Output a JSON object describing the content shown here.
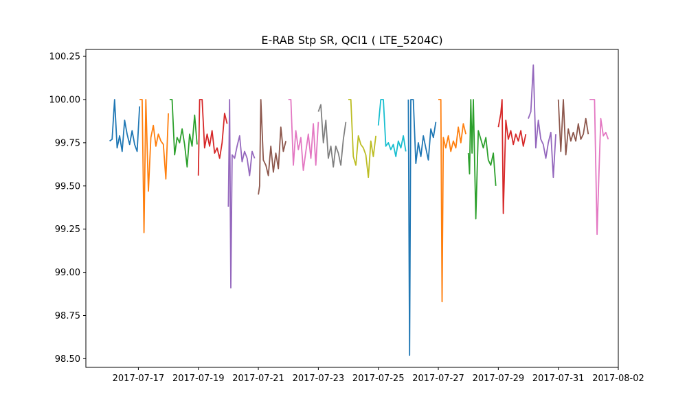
{
  "chart_data": {
    "type": "line",
    "title": "E-RAB Stp SR, QCI1 ( LTE_5204C)",
    "xlabel": "",
    "ylabel": "",
    "x_axis_type": "datetime",
    "xlim": [
      "2017-07-15 06:00",
      "2017-08-02 00:00"
    ],
    "ylim": [
      98.45,
      100.29
    ],
    "x_ticks": [
      "2017-07-17",
      "2017-07-19",
      "2017-07-21",
      "2017-07-23",
      "2017-07-25",
      "2017-07-27",
      "2017-07-29",
      "2017-07-31",
      "2017-08-02"
    ],
    "y_ticks": [
      100.25,
      100.0,
      99.75,
      99.5,
      99.25,
      99.0,
      98.75,
      98.5
    ],
    "y_tick_labels": [
      "100.25",
      "100.00",
      "99.75",
      "99.50",
      "99.25",
      "99.00",
      "98.75",
      "98.50"
    ],
    "grid": false,
    "legend": "none",
    "colors": [
      "#1f77b4",
      "#ff7f0e",
      "#2ca02c",
      "#d62728",
      "#9467bd",
      "#8c564b",
      "#e377c2",
      "#7f7f7f",
      "#bcbd22",
      "#17becf"
    ],
    "series": [
      {
        "color": "#1f77b4",
        "x": [
          "2017-07-16 01:00",
          "2017-07-16 03:00",
          "2017-07-16 05:00",
          "2017-07-16 07:00",
          "2017-07-16 09:00",
          "2017-07-16 11:00",
          "2017-07-16 13:00",
          "2017-07-16 15:00",
          "2017-07-16 17:00",
          "2017-07-16 19:00",
          "2017-07-16 21:00",
          "2017-07-16 23:00",
          "2017-07-17 01:00"
        ],
        "y": [
          99.76,
          99.77,
          100.0,
          99.72,
          99.79,
          99.7,
          99.88,
          99.8,
          99.74,
          99.82,
          99.74,
          99.7,
          99.96
        ]
      },
      {
        "color": "#ff7f0e",
        "x": [
          "2017-07-17 01:00",
          "2017-07-17 03:00",
          "2017-07-17 04:30",
          "2017-07-17 06:00",
          "2017-07-17 08:00",
          "2017-07-17 10:00",
          "2017-07-17 12:00",
          "2017-07-17 14:00",
          "2017-07-17 16:00",
          "2017-07-17 18:00",
          "2017-07-17 20:00",
          "2017-07-17 22:00",
          "2017-07-18 00:00"
        ],
        "y": [
          100.0,
          100.0,
          99.23,
          100.0,
          99.47,
          99.78,
          99.85,
          99.73,
          99.8,
          99.76,
          99.74,
          99.54,
          99.92
        ]
      },
      {
        "color": "#2ca02c",
        "x": [
          "2017-07-18 01:00",
          "2017-07-18 03:00",
          "2017-07-18 05:00",
          "2017-07-18 07:00",
          "2017-07-18 09:00",
          "2017-07-18 11:00",
          "2017-07-18 13:00",
          "2017-07-18 15:00",
          "2017-07-18 17:00",
          "2017-07-18 19:00",
          "2017-07-18 21:00",
          "2017-07-18 23:00"
        ],
        "y": [
          100.0,
          100.0,
          99.68,
          99.78,
          99.75,
          99.83,
          99.74,
          99.61,
          99.8,
          99.73,
          99.91,
          99.74
        ]
      },
      {
        "color": "#d62728",
        "x": [
          "2017-07-19 00:00",
          "2017-07-19 01:00",
          "2017-07-19 03:00",
          "2017-07-19 05:00",
          "2017-07-19 07:00",
          "2017-07-19 09:00",
          "2017-07-19 11:00",
          "2017-07-19 13:00",
          "2017-07-19 15:00",
          "2017-07-19 17:00",
          "2017-07-19 19:00",
          "2017-07-19 21:00",
          "2017-07-19 23:00"
        ],
        "y": [
          99.56,
          100.0,
          100.0,
          99.72,
          99.8,
          99.73,
          99.82,
          99.69,
          99.72,
          99.66,
          99.75,
          99.92,
          99.86
        ]
      },
      {
        "color": "#9467bd",
        "x": [
          "2017-07-20 00:00",
          "2017-07-20 01:00",
          "2017-07-20 02:00",
          "2017-07-20 03:00",
          "2017-07-20 05:00",
          "2017-07-20 07:00",
          "2017-07-20 09:00",
          "2017-07-20 11:00",
          "2017-07-20 13:00",
          "2017-07-20 15:00",
          "2017-07-20 17:00",
          "2017-07-20 19:00",
          "2017-07-20 21:00"
        ],
        "y": [
          99.38,
          100.0,
          98.91,
          99.68,
          99.66,
          99.73,
          99.79,
          99.64,
          99.7,
          99.66,
          99.56,
          99.7,
          99.66
        ]
      },
      {
        "color": "#8c564b",
        "x": [
          "2017-07-21 00:00",
          "2017-07-21 01:00",
          "2017-07-21 02:00",
          "2017-07-21 04:00",
          "2017-07-21 06:00",
          "2017-07-21 08:00",
          "2017-07-21 10:00",
          "2017-07-21 12:00",
          "2017-07-21 14:00",
          "2017-07-21 16:00",
          "2017-07-21 18:00",
          "2017-07-21 20:00",
          "2017-07-21 22:00"
        ],
        "y": [
          99.45,
          99.5,
          100.0,
          99.65,
          99.62,
          99.56,
          99.73,
          99.58,
          99.69,
          99.6,
          99.84,
          99.7,
          99.76
        ]
      },
      {
        "color": "#e377c2",
        "x": [
          "2017-07-22 00:00",
          "2017-07-22 02:00",
          "2017-07-22 04:00",
          "2017-07-22 06:00",
          "2017-07-22 08:00",
          "2017-07-22 10:00",
          "2017-07-22 12:00",
          "2017-07-22 14:00",
          "2017-07-22 16:00",
          "2017-07-22 18:00",
          "2017-07-22 20:00",
          "2017-07-22 22:00",
          "2017-07-23 00:00"
        ],
        "y": [
          100.0,
          100.0,
          99.62,
          99.82,
          99.71,
          99.78,
          99.59,
          99.7,
          99.8,
          99.66,
          99.86,
          99.62,
          99.87
        ]
      },
      {
        "color": "#7f7f7f",
        "x": [
          "2017-07-23 00:00",
          "2017-07-23 02:00",
          "2017-07-23 04:00",
          "2017-07-23 06:00",
          "2017-07-23 08:00",
          "2017-07-23 10:00",
          "2017-07-23 12:00",
          "2017-07-23 14:00",
          "2017-07-23 16:00",
          "2017-07-23 18:00",
          "2017-07-23 20:00",
          "2017-07-23 22:00"
        ],
        "y": [
          99.93,
          99.97,
          99.75,
          99.88,
          99.66,
          99.73,
          99.61,
          99.73,
          99.69,
          99.62,
          99.77,
          99.87
        ]
      },
      {
        "color": "#bcbd22",
        "x": [
          "2017-07-24 00:00",
          "2017-07-24 02:00",
          "2017-07-24 04:00",
          "2017-07-24 06:00",
          "2017-07-24 08:00",
          "2017-07-24 10:00",
          "2017-07-24 12:00",
          "2017-07-24 14:00",
          "2017-07-24 16:00",
          "2017-07-24 18:00",
          "2017-07-24 20:00",
          "2017-07-24 22:00"
        ],
        "y": [
          100.0,
          100.0,
          99.67,
          99.62,
          99.79,
          99.74,
          99.72,
          99.68,
          99.55,
          99.76,
          99.67,
          99.79
        ]
      },
      {
        "color": "#17becf",
        "x": [
          "2017-07-25 00:00",
          "2017-07-25 02:00",
          "2017-07-25 04:00",
          "2017-07-25 06:00",
          "2017-07-25 08:00",
          "2017-07-25 10:00",
          "2017-07-25 12:00",
          "2017-07-25 14:00",
          "2017-07-25 16:00",
          "2017-07-25 18:00",
          "2017-07-25 20:00",
          "2017-07-25 22:00"
        ],
        "y": [
          99.85,
          100.0,
          100.0,
          99.73,
          99.75,
          99.71,
          99.74,
          99.67,
          99.76,
          99.72,
          99.79,
          99.7
        ]
      },
      {
        "color": "#1f77b4",
        "x": [
          "2017-07-26 00:00",
          "2017-07-26 01:00",
          "2017-07-26 02:00",
          "2017-07-26 04:00",
          "2017-07-26 06:00",
          "2017-07-26 08:00",
          "2017-07-26 10:00",
          "2017-07-26 12:00",
          "2017-07-26 14:00",
          "2017-07-26 16:00",
          "2017-07-26 18:00",
          "2017-07-26 20:00",
          "2017-07-26 22:00"
        ],
        "y": [
          100.0,
          98.52,
          100.0,
          100.0,
          99.63,
          99.75,
          99.67,
          99.79,
          99.72,
          99.65,
          99.83,
          99.78,
          99.87
        ]
      },
      {
        "color": "#ff7f0e",
        "x": [
          "2017-07-27 00:00",
          "2017-07-27 02:00",
          "2017-07-27 03:00",
          "2017-07-27 04:00",
          "2017-07-27 06:00",
          "2017-07-27 08:00",
          "2017-07-27 10:00",
          "2017-07-27 12:00",
          "2017-07-27 14:00",
          "2017-07-27 16:00",
          "2017-07-27 18:00",
          "2017-07-27 20:00",
          "2017-07-27 22:00"
        ],
        "y": [
          100.0,
          100.0,
          98.83,
          99.78,
          99.72,
          99.79,
          99.7,
          99.76,
          99.72,
          99.84,
          99.75,
          99.86,
          99.8
        ]
      },
      {
        "color": "#2ca02c",
        "x": [
          "2017-07-28 00:00",
          "2017-07-28 01:00",
          "2017-07-28 02:00",
          "2017-07-28 03:00",
          "2017-07-28 04:00",
          "2017-07-28 06:00",
          "2017-07-28 08:00",
          "2017-07-28 10:00",
          "2017-07-28 12:00",
          "2017-07-28 14:00",
          "2017-07-28 16:00",
          "2017-07-28 18:00",
          "2017-07-28 20:00",
          "2017-07-28 22:00"
        ],
        "y": [
          99.69,
          99.57,
          100.0,
          99.69,
          100.0,
          99.31,
          99.82,
          99.77,
          99.72,
          99.78,
          99.65,
          99.62,
          99.69,
          99.5
        ]
      },
      {
        "color": "#d62728",
        "x": [
          "2017-07-29 00:00",
          "2017-07-29 02:00",
          "2017-07-29 03:00",
          "2017-07-29 04:00",
          "2017-07-29 06:00",
          "2017-07-29 08:00",
          "2017-07-29 10:00",
          "2017-07-29 12:00",
          "2017-07-29 14:00",
          "2017-07-29 16:00",
          "2017-07-29 18:00",
          "2017-07-29 20:00",
          "2017-07-29 22:00"
        ],
        "y": [
          99.84,
          99.92,
          100.0,
          99.34,
          99.88,
          99.77,
          99.82,
          99.74,
          99.8,
          99.76,
          99.82,
          99.73,
          99.8
        ]
      },
      {
        "color": "#9467bd",
        "x": [
          "2017-07-30 00:00",
          "2017-07-30 02:00",
          "2017-07-30 04:00",
          "2017-07-30 06:00",
          "2017-07-30 08:00",
          "2017-07-30 10:00",
          "2017-07-30 12:00",
          "2017-07-30 14:00",
          "2017-07-30 16:00",
          "2017-07-30 18:00",
          "2017-07-30 20:00",
          "2017-07-30 22:00"
        ],
        "y": [
          99.89,
          99.93,
          100.2,
          99.72,
          99.88,
          99.77,
          99.74,
          99.66,
          99.75,
          99.81,
          99.55,
          99.8
        ]
      },
      {
        "color": "#8c564b",
        "x": [
          "2017-07-31 00:00",
          "2017-07-31 02:00",
          "2017-07-31 04:00",
          "2017-07-31 06:00",
          "2017-07-31 08:00",
          "2017-07-31 10:00",
          "2017-07-31 12:00",
          "2017-07-31 14:00",
          "2017-07-31 16:00",
          "2017-07-31 18:00",
          "2017-07-31 20:00",
          "2017-07-31 22:00",
          "2017-08-01 00:00"
        ],
        "y": [
          100.0,
          99.7,
          100.0,
          99.68,
          99.83,
          99.76,
          99.81,
          99.76,
          99.86,
          99.77,
          99.8,
          99.89,
          99.8
        ]
      },
      {
        "color": "#e377c2",
        "x": [
          "2017-08-01 01:00",
          "2017-08-01 03:00",
          "2017-08-01 05:00",
          "2017-08-01 07:00",
          "2017-08-01 08:30",
          "2017-08-01 10:00",
          "2017-08-01 12:00",
          "2017-08-01 14:00",
          "2017-08-01 16:00"
        ],
        "y": [
          100.0,
          100.0,
          100.0,
          99.22,
          99.57,
          99.89,
          99.79,
          99.81,
          99.77
        ]
      }
    ]
  }
}
